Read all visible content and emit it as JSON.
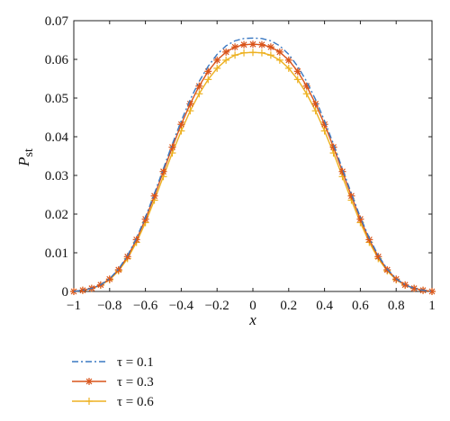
{
  "chart_data": {
    "type": "line",
    "xlabel": "x",
    "ylabel": "P",
    "ylabel_sub": "st",
    "xlim": [
      -1,
      1
    ],
    "ylim": [
      0,
      0.07
    ],
    "xticks": [
      -1,
      -0.8,
      -0.6,
      -0.4,
      -0.2,
      0,
      0.2,
      0.4,
      0.6,
      0.8,
      1
    ],
    "xtick_labels": [
      "−1",
      "−0.8",
      "−0.6",
      "−0.4",
      "−0.2",
      "0",
      "0.2",
      "0.4",
      "0.6",
      "0.8",
      "1"
    ],
    "yticks": [
      0,
      0.01,
      0.02,
      0.03,
      0.04,
      0.05,
      0.06,
      0.07
    ],
    "ytick_labels": [
      "0",
      "0.01",
      "0.02",
      "0.03",
      "0.04",
      "0.05",
      "0.06",
      "0.07"
    ],
    "legend_position": "below-left",
    "x": [
      -1,
      -0.95,
      -0.9,
      -0.85,
      -0.8,
      -0.75,
      -0.7,
      -0.65,
      -0.6,
      -0.55,
      -0.5,
      -0.45,
      -0.4,
      -0.35,
      -0.3,
      -0.25,
      -0.2,
      -0.15,
      -0.1,
      -0.05,
      0,
      0.05,
      0.1,
      0.15,
      0.2,
      0.25,
      0.3,
      0.35,
      0.4,
      0.45,
      0.5,
      0.55,
      0.6,
      0.65,
      0.7,
      0.75,
      0.8,
      0.85,
      0.9,
      0.95,
      1
    ],
    "series": [
      {
        "name": "τ = 0.1",
        "color": "#3a78c2",
        "style": "dash-dot",
        "marker": "none",
        "values": [
          0.0,
          0.0003,
          0.0008,
          0.0017,
          0.0033,
          0.0058,
          0.0093,
          0.0138,
          0.0192,
          0.0253,
          0.0317,
          0.0381,
          0.0441,
          0.0496,
          0.0543,
          0.0582,
          0.0613,
          0.0635,
          0.0648,
          0.0654,
          0.0655,
          0.0654,
          0.0648,
          0.0635,
          0.0613,
          0.0582,
          0.0543,
          0.0496,
          0.0441,
          0.0381,
          0.0317,
          0.0253,
          0.0192,
          0.0138,
          0.0093,
          0.0058,
          0.0033,
          0.0017,
          0.0008,
          0.0003,
          0.0
        ]
      },
      {
        "name": "τ = 0.3",
        "color": "#d9541a",
        "style": "solid",
        "marker": "asterisk",
        "values": [
          0.0,
          0.0003,
          0.0008,
          0.0017,
          0.0032,
          0.0056,
          0.009,
          0.0134,
          0.0187,
          0.0247,
          0.031,
          0.0373,
          0.0432,
          0.0485,
          0.0531,
          0.0569,
          0.0598,
          0.0619,
          0.0632,
          0.0638,
          0.0639,
          0.0638,
          0.0632,
          0.0619,
          0.0598,
          0.0569,
          0.0531,
          0.0485,
          0.0432,
          0.0373,
          0.031,
          0.0247,
          0.0187,
          0.0134,
          0.009,
          0.0056,
          0.0032,
          0.0017,
          0.0008,
          0.0003,
          0.0
        ]
      },
      {
        "name": "τ = 0.6",
        "color": "#edb120",
        "style": "solid",
        "marker": "plus",
        "values": [
          0.0,
          0.0003,
          0.0008,
          0.0016,
          0.003,
          0.0053,
          0.0085,
          0.0127,
          0.0178,
          0.0236,
          0.0297,
          0.0358,
          0.0415,
          0.0467,
          0.0511,
          0.0548,
          0.0577,
          0.0598,
          0.0611,
          0.0617,
          0.0618,
          0.0617,
          0.0611,
          0.0598,
          0.0577,
          0.0548,
          0.0511,
          0.0467,
          0.0415,
          0.0358,
          0.0297,
          0.0236,
          0.0178,
          0.0127,
          0.0085,
          0.0053,
          0.003,
          0.0016,
          0.0008,
          0.0003,
          0.0
        ]
      }
    ]
  }
}
